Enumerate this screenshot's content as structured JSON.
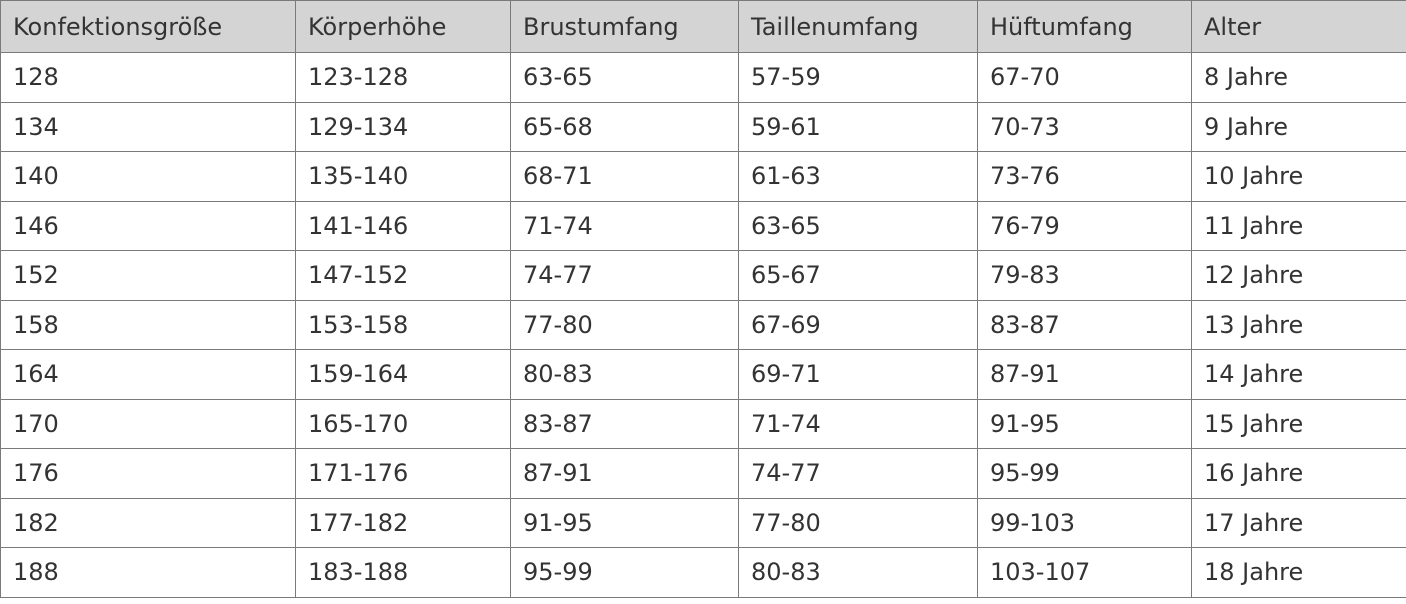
{
  "table": {
    "headers": [
      "Konfektionsgröße",
      "Körperhöhe",
      "Brustumfang",
      "Taillenumfang",
      "Hüftumfang",
      "Alter"
    ],
    "rows": [
      [
        "128",
        "123-128",
        "63-65",
        "57-59",
        "67-70",
        "8 Jahre"
      ],
      [
        "134",
        "129-134",
        "65-68",
        "59-61",
        "70-73",
        "9 Jahre"
      ],
      [
        "140",
        "135-140",
        "68-71",
        "61-63",
        "73-76",
        "10 Jahre"
      ],
      [
        "146",
        "141-146",
        "71-74",
        "63-65",
        "76-79",
        "11 Jahre"
      ],
      [
        "152",
        "147-152",
        "74-77",
        "65-67",
        "79-83",
        "12 Jahre"
      ],
      [
        "158",
        "153-158",
        "77-80",
        "67-69",
        "83-87",
        "13 Jahre"
      ],
      [
        "164",
        "159-164",
        "80-83",
        "69-71",
        "87-91",
        "14 Jahre"
      ],
      [
        "170",
        "165-170",
        "83-87",
        "71-74",
        "91-95",
        "15 Jahre"
      ],
      [
        "176",
        "171-176",
        "87-91",
        "74-77",
        "95-99",
        "16 Jahre"
      ],
      [
        "182",
        "177-182",
        "91-95",
        "77-80",
        "99-103",
        "17 Jahre"
      ],
      [
        "188",
        "183-188",
        "95-99",
        "80-83",
        "103-107",
        "18 Jahre"
      ]
    ]
  },
  "colors": {
    "header_bg": "#d4d4d4",
    "border": "#7a7a7a",
    "text": "#333333"
  }
}
